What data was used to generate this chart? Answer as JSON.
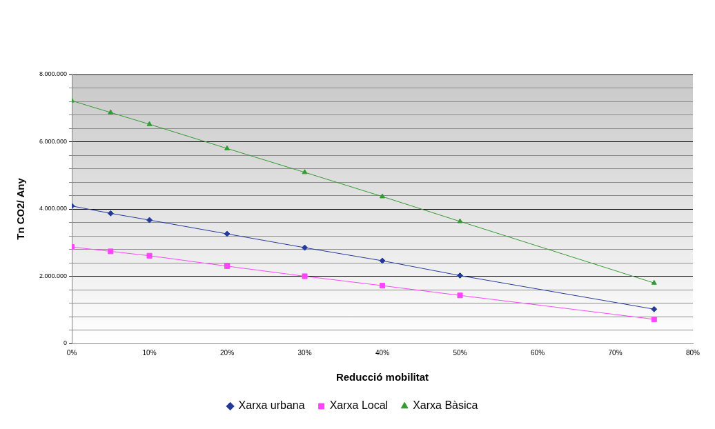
{
  "chart_data": {
    "type": "line",
    "xlabel": "Reducció mobilitat",
    "ylabel": "Tn CO2/ Any",
    "x": [
      0,
      5,
      10,
      20,
      30,
      40,
      50,
      75
    ],
    "series": [
      {
        "name": "Xarxa urbana",
        "color": "#233a9a",
        "marker": "diamond",
        "values": [
          4090000,
          3870000,
          3670000,
          3260000,
          2850000,
          2460000,
          2020000,
          1020000
        ]
      },
      {
        "name": "Xarxa Local",
        "color": "#ff44ff",
        "marker": "square",
        "values": [
          2870000,
          2740000,
          2610000,
          2300000,
          2000000,
          1720000,
          1430000,
          720000
        ]
      },
      {
        "name": "Xarxa Bàsica",
        "color": "#339933",
        "marker": "triangle",
        "values": [
          7220000,
          6870000,
          6520000,
          5800000,
          5090000,
          4370000,
          3630000,
          1800000
        ]
      }
    ],
    "xlim": [
      0,
      80
    ],
    "xticks": [
      {
        "value": 0,
        "label": "0%"
      },
      {
        "value": 10,
        "label": "10%"
      },
      {
        "value": 20,
        "label": "20%"
      },
      {
        "value": 30,
        "label": "30%"
      },
      {
        "value": 40,
        "label": "40%"
      },
      {
        "value": 50,
        "label": "50%"
      },
      {
        "value": 60,
        "label": "60%"
      },
      {
        "value": 70,
        "label": "70%"
      },
      {
        "value": 80,
        "label": "80%"
      }
    ],
    "ylim": [
      0,
      8000000
    ],
    "yticks": [
      0,
      {
        "value": 400000,
        "label": null
      },
      {
        "value": 800000,
        "label": null
      },
      {
        "value": 1200000,
        "label": null
      },
      {
        "value": 1600000,
        "label": null
      },
      {
        "value": 2000000,
        "label": "2.000.000"
      },
      {
        "value": 2400000,
        "label": null
      },
      {
        "value": 2800000,
        "label": null
      },
      {
        "value": 3200000,
        "label": null
      },
      {
        "value": 3600000,
        "label": null
      },
      {
        "value": 4000000,
        "label": "4.000.000"
      },
      {
        "value": 4400000,
        "label": null
      },
      {
        "value": 4800000,
        "label": null
      },
      {
        "value": 5200000,
        "label": null
      },
      {
        "value": 5600000,
        "label": null
      },
      {
        "value": 6000000,
        "label": "6.000.000"
      },
      {
        "value": 6400000,
        "label": null
      },
      {
        "value": 6800000,
        "label": null
      },
      {
        "value": 7200000,
        "label": null
      },
      {
        "value": 7600000,
        "label": null
      },
      {
        "value": 8000000,
        "label": "8.000.000"
      }
    ],
    "grid": "y",
    "legend": "bottom",
    "line_style": "solid"
  }
}
